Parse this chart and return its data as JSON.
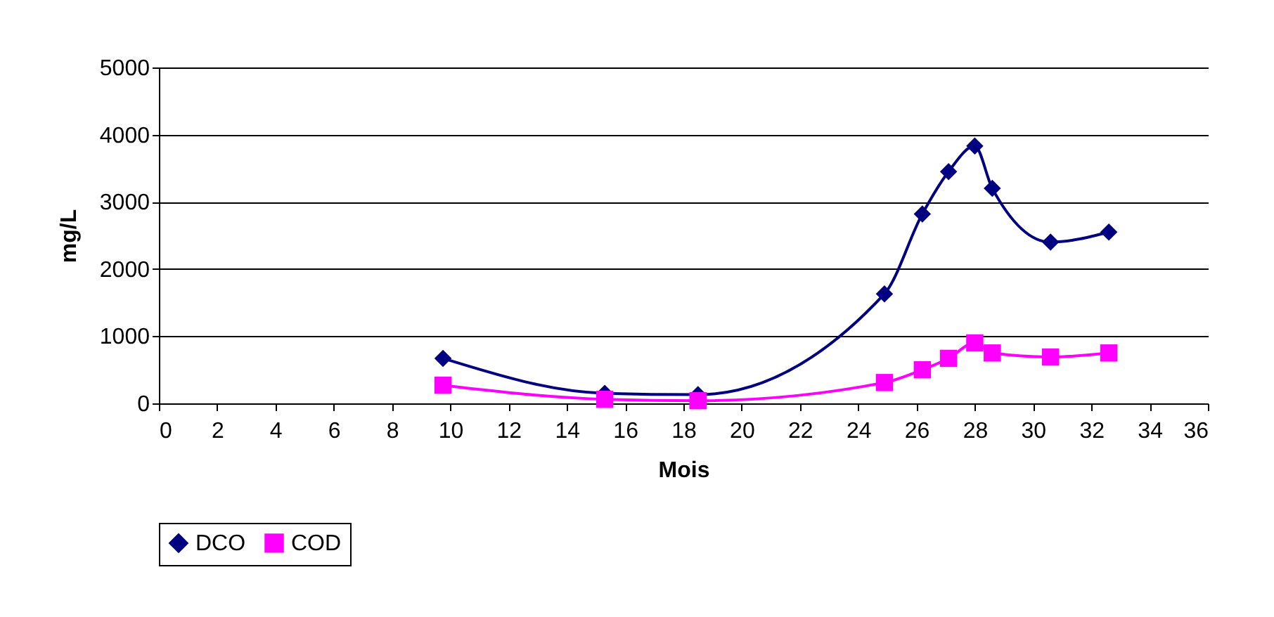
{
  "chart_data": {
    "type": "line",
    "xlabel": "Mois",
    "ylabel": "mg/L",
    "xlim": [
      0,
      36
    ],
    "xticks": [
      0,
      2,
      4,
      6,
      8,
      10,
      12,
      14,
      16,
      18,
      20,
      22,
      24,
      26,
      28,
      30,
      32,
      34,
      36
    ],
    "ylim": [
      0,
      5000
    ],
    "yticks": [
      0,
      1000,
      2000,
      3000,
      4000,
      5000
    ],
    "grid": "y",
    "legend": "bottom",
    "line_style": "solid",
    "series": [
      {
        "name": "DCO",
        "color": "#000080",
        "marker": "diamond",
        "x": [
          9.75,
          15.3,
          18.5,
          24.9,
          26.2,
          27.1,
          28.0,
          28.6,
          30.6,
          32.6
        ],
        "values": [
          670,
          150,
          130,
          1630,
          2820,
          3450,
          3830,
          3200,
          2400,
          2550
        ]
      },
      {
        "name": "COD",
        "color": "#ff00ff",
        "marker": "square",
        "x": [
          9.75,
          15.3,
          18.5,
          24.9,
          26.2,
          27.1,
          28.0,
          28.6,
          30.6,
          32.6
        ],
        "values": [
          270,
          60,
          40,
          310,
          500,
          670,
          900,
          750,
          690,
          750
        ]
      }
    ]
  }
}
